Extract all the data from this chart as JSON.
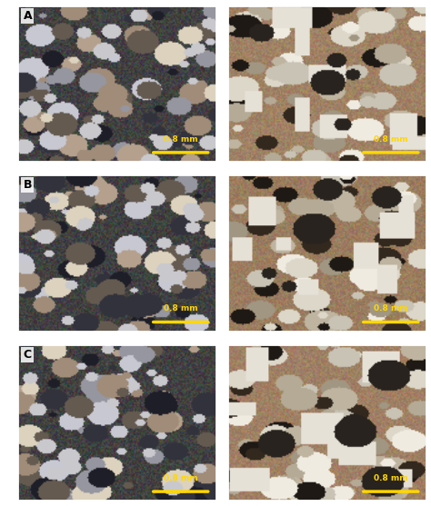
{
  "layout": {
    "rows": 3,
    "cols": 2,
    "row_labels": [
      "A",
      "B",
      "C"
    ],
    "scale_bar_text": "0.8 mm",
    "scale_bar_color": "#FFD700",
    "label_bg_color": "#FFFFFF",
    "label_text_color": "#000000",
    "label_fontsize": 9,
    "scale_fontsize": 6.5
  },
  "figure_bg": "#FFFFFF",
  "panel_images": [
    [
      {
        "base_color": [
          100,
          100,
          110
        ]
      },
      {
        "base_color": [
          160,
          130,
          100
        ]
      }
    ],
    [
      {
        "base_color": [
          90,
          95,
          105
        ]
      },
      {
        "base_color": [
          155,
          125,
          95
        ]
      }
    ],
    [
      {
        "base_color": [
          95,
          95,
          100
        ]
      },
      {
        "base_color": [
          160,
          128,
          100
        ]
      }
    ]
  ]
}
